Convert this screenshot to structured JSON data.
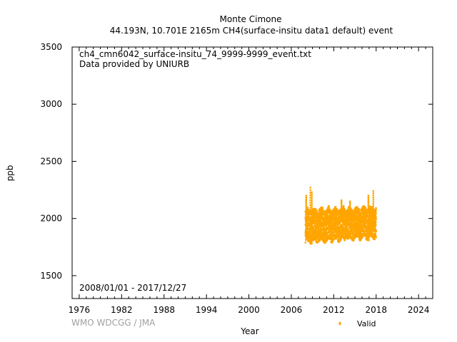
{
  "chart_data": {
    "type": "scatter",
    "title": "Monte Cimone",
    "subtitle": "44.193N, 10.701E 2165m    CH4(surface-insitu data1 default) event",
    "xlabel": "Year",
    "ylabel": "ppb",
    "xlim": [
      1975,
      2026
    ],
    "ylim": [
      1300,
      3500
    ],
    "x_ticks": [
      1976,
      1982,
      1988,
      1994,
      2000,
      2006,
      2012,
      2018,
      2024
    ],
    "y_ticks": [
      1500,
      2000,
      2500,
      3000,
      3500
    ],
    "file_label": "ch4_cmn6042_surface-insitu_74_9999-9999_event.txt",
    "provider_label": "Data provided by UNIURB",
    "period_label": "2008/01/01 - 2017/12/27",
    "credit": "WMO WDCGG / JMA",
    "series": [
      {
        "name": "Valid",
        "color": "#ffa500",
        "x_range": [
          2008.0,
          2017.99
        ],
        "y_band": [
          1790,
          2080
        ],
        "spikes": [
          {
            "x": 2008.1,
            "y": 2200
          },
          {
            "x": 2008.7,
            "y": 2270
          },
          {
            "x": 2008.9,
            "y": 2230
          },
          {
            "x": 2010.4,
            "y": 2090
          },
          {
            "x": 2011.3,
            "y": 2110
          },
          {
            "x": 2012.2,
            "y": 2100
          },
          {
            "x": 2013.1,
            "y": 2160
          },
          {
            "x": 2013.4,
            "y": 2110
          },
          {
            "x": 2014.3,
            "y": 2150
          },
          {
            "x": 2015.3,
            "y": 2090
          },
          {
            "x": 2016.9,
            "y": 2200
          },
          {
            "x": 2017.6,
            "y": 2240
          },
          {
            "x": 2017.0,
            "y": 1810
          }
        ]
      }
    ]
  }
}
